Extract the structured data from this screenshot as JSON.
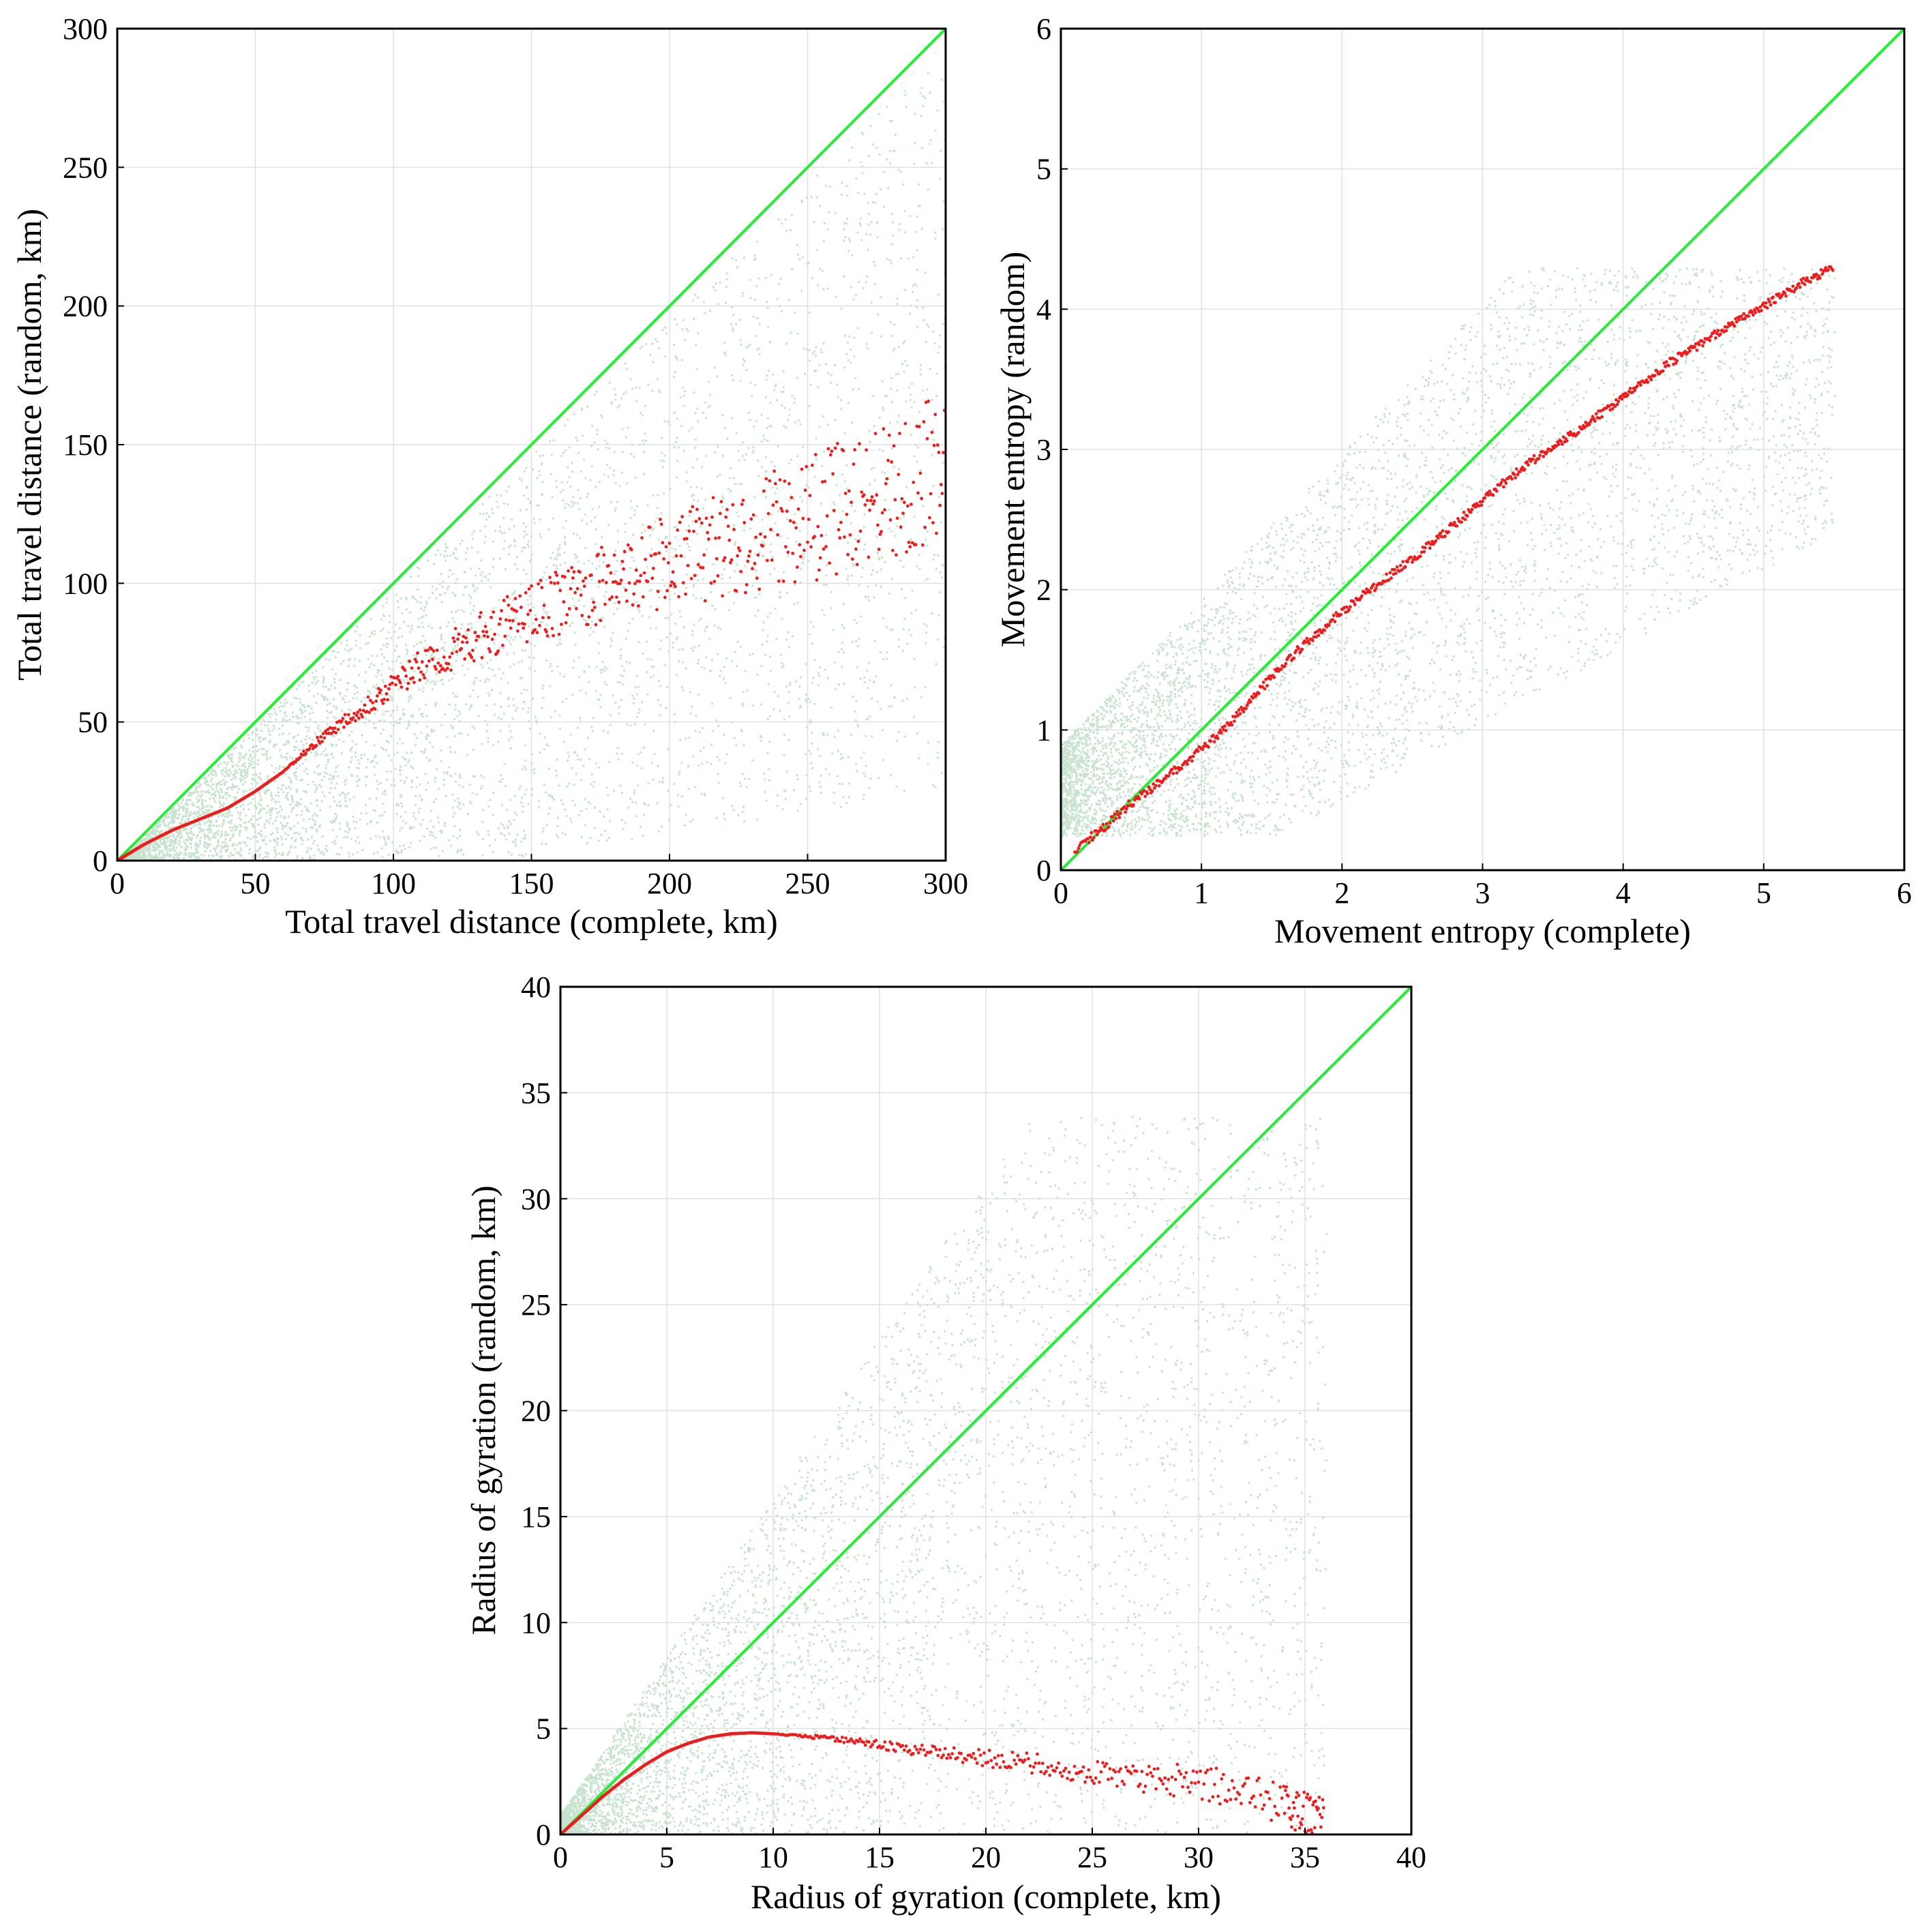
{
  "colors": {
    "identity_line": "#22ee33",
    "median_points": "#ee1c1c",
    "cloud_points": "#c7e3cf"
  },
  "chart_data": [
    {
      "id": "travel-distance",
      "type": "scatter",
      "title": "",
      "xlabel": "Total travel distance (complete, km)",
      "ylabel": "Total travel distance (random, km)",
      "xlim": [
        0,
        300
      ],
      "ylim": [
        0,
        300
      ],
      "xticks": [
        0,
        50,
        100,
        150,
        200,
        250,
        300
      ],
      "yticks": [
        0,
        50,
        100,
        150,
        200,
        250,
        300
      ],
      "grid": true,
      "series": [
        {
          "name": "identity",
          "kind": "line",
          "x": [
            0,
            300
          ],
          "y": [
            0,
            300
          ]
        },
        {
          "name": "average random vs complete",
          "kind": "points",
          "x": [
            0,
            5,
            10,
            20,
            30,
            40,
            50,
            60,
            70,
            80,
            90,
            100,
            110,
            120,
            130,
            140,
            150,
            160,
            170,
            180,
            190,
            200,
            210,
            220,
            230,
            240,
            250,
            260,
            270,
            280,
            290,
            300
          ],
          "y": [
            0,
            3,
            6,
            11,
            15,
            19,
            25,
            32,
            41,
            49,
            56,
            63,
            70,
            75,
            80,
            85,
            89,
            93,
            97,
            101,
            105,
            108,
            111,
            114,
            117,
            120,
            123,
            127,
            130,
            134,
            137,
            140
          ]
        },
        {
          "name": "individual users",
          "kind": "cloud",
          "x_max": 300,
          "spread": "wide band below identity"
        }
      ]
    },
    {
      "id": "movement-entropy",
      "type": "scatter",
      "title": "",
      "xlabel": "Movement entropy (complete)",
      "ylabel": "Movement entropy (random)",
      "xlim": [
        0,
        6
      ],
      "ylim": [
        0,
        6
      ],
      "xticks": [
        0,
        1,
        2,
        3,
        4,
        5,
        6
      ],
      "yticks": [
        0,
        1,
        2,
        3,
        4,
        5,
        6
      ],
      "grid": true,
      "series": [
        {
          "name": "identity",
          "kind": "line",
          "x": [
            0,
            6
          ],
          "y": [
            0,
            6
          ]
        },
        {
          "name": "average random vs complete",
          "kind": "points",
          "x": [
            0.1,
            0.3,
            0.5,
            0.7,
            0.9,
            1.1,
            1.3,
            1.5,
            1.7,
            1.9,
            2.1,
            2.3,
            2.5,
            2.7,
            2.9,
            3.1,
            3.3,
            3.5,
            3.7,
            3.9,
            4.1,
            4.3,
            4.5,
            4.7,
            4.9,
            5.1,
            5.3,
            5.5
          ],
          "y": [
            0.15,
            0.3,
            0.48,
            0.62,
            0.78,
            0.95,
            1.15,
            1.38,
            1.58,
            1.76,
            1.92,
            2.07,
            2.22,
            2.38,
            2.55,
            2.72,
            2.88,
            3.02,
            3.15,
            3.3,
            3.45,
            3.6,
            3.72,
            3.85,
            3.97,
            4.08,
            4.2,
            4.3
          ]
        },
        {
          "name": "individual users",
          "kind": "cloud",
          "x_max": 5.5,
          "spread": "wide band"
        }
      ]
    },
    {
      "id": "radius-of-gyration",
      "type": "scatter",
      "title": "",
      "xlabel": "Radius of gyration (complete, km)",
      "ylabel": "Radius of gyration (random, km)",
      "xlim": [
        0,
        40
      ],
      "ylim": [
        0,
        40
      ],
      "xticks": [
        0,
        5,
        10,
        15,
        20,
        25,
        30,
        35,
        40
      ],
      "yticks": [
        0,
        5,
        10,
        15,
        20,
        25,
        30,
        35,
        40
      ],
      "grid": true,
      "series": [
        {
          "name": "identity",
          "kind": "line",
          "x": [
            0,
            40
          ],
          "y": [
            0,
            40
          ]
        },
        {
          "name": "average random vs complete",
          "kind": "points",
          "x": [
            0,
            1,
            2,
            3,
            4,
            5,
            6,
            7,
            8,
            9,
            10,
            12,
            14,
            16,
            18,
            20,
            22,
            24,
            26,
            28,
            30,
            32,
            34,
            35,
            36
          ],
          "y": [
            0,
            0.9,
            1.8,
            2.6,
            3.3,
            3.9,
            4.3,
            4.6,
            4.75,
            4.8,
            4.75,
            4.6,
            4.4,
            4.1,
            3.8,
            3.6,
            3.4,
            3.1,
            2.8,
            2.6,
            2.5,
            2.0,
            1.4,
            1.0,
            0.6
          ]
        },
        {
          "name": "individual users",
          "kind": "cloud",
          "x_max": 36,
          "spread": "wide band around identity"
        }
      ]
    }
  ]
}
